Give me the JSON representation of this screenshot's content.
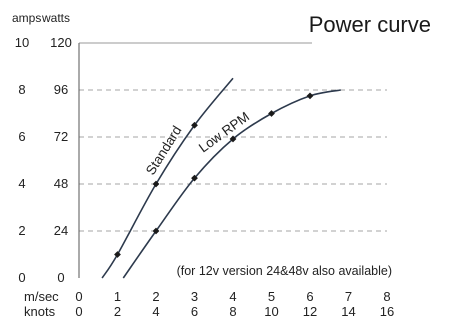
{
  "chart_data": {
    "type": "line",
    "title": "Power curve",
    "y_units": {
      "left": "amps",
      "right": "watts"
    },
    "amps_ticks": [
      "0",
      "2",
      "4",
      "6",
      "8",
      "10"
    ],
    "watts_ticks": [
      "0",
      "24",
      "48",
      "72",
      "96",
      "120"
    ],
    "x_row_labels": {
      "speed": "m/sec",
      "knots": "knots"
    },
    "ms_ticks": [
      "0",
      "1",
      "2",
      "3",
      "4",
      "5",
      "6",
      "7",
      "8"
    ],
    "knots_ticks": [
      "0",
      "2",
      "4",
      "6",
      "8",
      "10",
      "12",
      "14",
      "16"
    ],
    "xlim": [
      0,
      8
    ],
    "ylim": [
      0,
      120
    ],
    "grid": "dashed horizontal at each watts tick",
    "series": [
      {
        "name": "Standard",
        "points": [
          [
            0.6,
            0
          ],
          [
            1.0,
            12
          ],
          [
            2.0,
            48
          ],
          [
            3.0,
            78
          ],
          [
            4.0,
            102
          ]
        ],
        "markers": [
          [
            1.0,
            12
          ],
          [
            2.0,
            48
          ],
          [
            3.0,
            78
          ]
        ]
      },
      {
        "name": "Low RPM",
        "points": [
          [
            1.15,
            0
          ],
          [
            2.0,
            24
          ],
          [
            3.0,
            51
          ],
          [
            4.0,
            71
          ],
          [
            5.0,
            84
          ],
          [
            6.0,
            93
          ],
          [
            6.8,
            96
          ]
        ],
        "markers": [
          [
            2.0,
            24
          ],
          [
            3.0,
            51
          ],
          [
            4.0,
            71
          ],
          [
            5.0,
            84
          ],
          [
            6.0,
            93
          ]
        ]
      }
    ],
    "annotation": "(for 12v version 24&48v also available)"
  }
}
